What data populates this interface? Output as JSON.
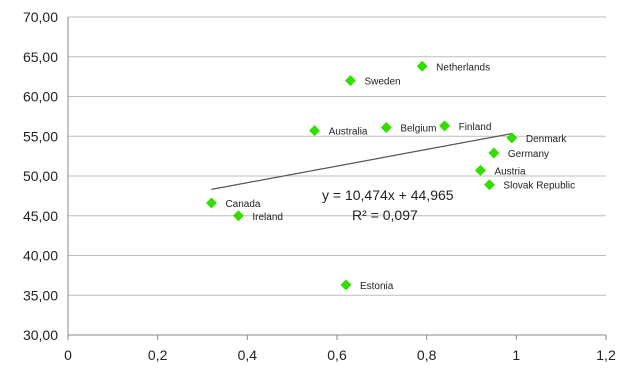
{
  "chart_data": {
    "type": "scatter",
    "title": "",
    "xlabel": "",
    "ylabel": "",
    "xlim": [
      0,
      1.2
    ],
    "ylim": [
      30,
      70
    ],
    "x_ticks": [
      0,
      0.2,
      0.4,
      0.6,
      0.8,
      1,
      1.2
    ],
    "x_tick_labels": [
      "0",
      "0,2",
      "0,4",
      "0,6",
      "0,8",
      "1",
      "1,2"
    ],
    "y_ticks": [
      30,
      35,
      40,
      45,
      50,
      55,
      60,
      65,
      70
    ],
    "y_tick_labels": [
      "30,00",
      "35,00",
      "40,00",
      "45,00",
      "50,00",
      "55,00",
      "60,00",
      "65,00",
      "70,00"
    ],
    "grid": "horizontal",
    "marker": "diamond",
    "marker_color": "#33dd00",
    "trend_color": "#555555",
    "points": [
      {
        "label": "Netherlands",
        "x": 0.79,
        "y": 63.8
      },
      {
        "label": "Sweden",
        "x": 0.63,
        "y": 62.0
      },
      {
        "label": "Australia",
        "x": 0.55,
        "y": 55.7
      },
      {
        "label": "Belgium",
        "x": 0.71,
        "y": 56.1
      },
      {
        "label": "Finland",
        "x": 0.84,
        "y": 56.3
      },
      {
        "label": "Denmark",
        "x": 0.99,
        "y": 54.8
      },
      {
        "label": "Germany",
        "x": 0.95,
        "y": 52.9
      },
      {
        "label": "Austria",
        "x": 0.92,
        "y": 50.7
      },
      {
        "label": "Slovak Republic",
        "x": 0.94,
        "y": 48.9
      },
      {
        "label": "Canada",
        "x": 0.32,
        "y": 46.6
      },
      {
        "label": "Ireland",
        "x": 0.38,
        "y": 45.0
      },
      {
        "label": "Estonia",
        "x": 0.62,
        "y": 36.3
      }
    ],
    "trendline": {
      "slope": 10.474,
      "intercept": 44.965,
      "x_range": [
        0.32,
        0.99
      ],
      "equation": "y = 10,474x + 44,965",
      "r2": "R² = 0,097"
    }
  }
}
